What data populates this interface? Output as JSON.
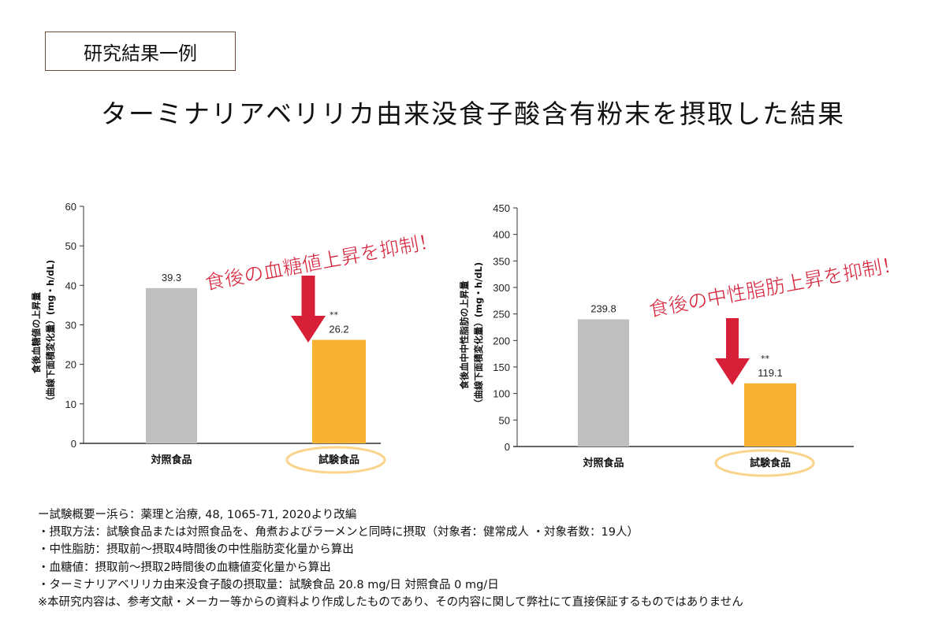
{
  "header": {
    "tag": "研究結果一例",
    "title": "ターミナリアベリリカ由来没食子酸含有粉末を摂取した結果"
  },
  "colors": {
    "control": "#bfbfbf",
    "test": "#f7b133",
    "arrow": "#d71f37",
    "callout": "#d71f37",
    "circle": "#f9d48a"
  },
  "chart_data": [
    {
      "type": "bar",
      "categories": [
        "対照食品",
        "試験食品"
      ],
      "values": [
        39.3,
        26.2
      ],
      "data_labels": [
        "39.3",
        "26.2"
      ],
      "significance": [
        "",
        "**"
      ],
      "ylabel_line1": "食後血糖値の上昇量",
      "ylabel_line2": "（曲線下面積変化量）(mg・h/dL)",
      "ylim": [
        0,
        60
      ],
      "yticks": [
        0,
        10,
        20,
        30,
        40,
        50,
        60
      ],
      "annotation": "食後の血糖値上昇を抑制！",
      "grid": false
    },
    {
      "type": "bar",
      "categories": [
        "対照食品",
        "試験食品"
      ],
      "values": [
        239.8,
        119.1
      ],
      "data_labels": [
        "239.8",
        "119.1"
      ],
      "significance": [
        "",
        "**"
      ],
      "ylabel_line1": "食後血中中性脂肪の上昇量",
      "ylabel_line2": "（曲線下面積変化量）(mg・h/dL)",
      "ylim": [
        0,
        450
      ],
      "yticks": [
        0,
        50,
        100,
        150,
        200,
        250,
        300,
        350,
        400,
        450
      ],
      "annotation": "食後の中性脂肪上昇を抑制！",
      "grid": false
    }
  ],
  "notes": [
    "ー試験概要ー浜ら：薬理と治療, 48, 1065-71, 2020より改編",
    "・摂取方法：試験食品または対照食品を、角煮およびラーメンと同時に摂取（対象者：健常成人 ・対象者数：19人）",
    "・中性脂肪：摂取前〜摂取4時間後の中性脂肪変化量から算出",
    "・血糖値：摂取前〜摂取2時間後の血糖値変化量から算出",
    "・ターミナリアベリリカ由来没食子酸の摂取量：試験食品 20.8 mg/日 対照食品 0 mg/日",
    "※本研究内容は、参考文献・メーカー等からの資料より作成したものであり、その内容に関して弊社にて直接保証するものではありません"
  ]
}
